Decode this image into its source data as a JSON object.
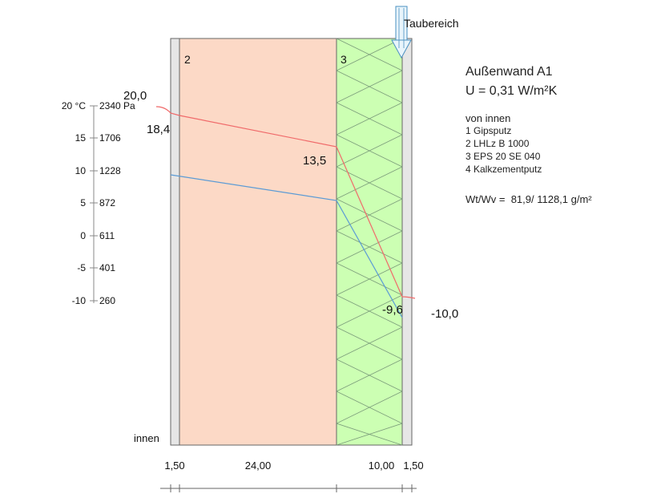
{
  "top_label": "Taubereich",
  "info": {
    "title": "Außenwand A1",
    "u_value": "U = 0,31 W/m²K",
    "from_inside": "von innen",
    "layers": [
      "1 Gipsputz",
      "2 LHLz B 1000",
      "3 EPS 20 SE 040",
      "4 Kalkzementputz"
    ],
    "wt_wv": "Wt/Wv =  81,9/ 1128,1 g/m²"
  },
  "scale": {
    "temps": [
      "20 °C",
      "15",
      "10",
      "5",
      "0",
      "-5",
      "-10"
    ],
    "pressures": [
      "2340 Pa",
      "1706",
      "1228",
      "872",
      "611",
      "401",
      "260"
    ]
  },
  "layer_numbers": [
    "2",
    "3"
  ],
  "temperature_labels": {
    "inside_air": "20,0",
    "inside_surface": "18,4",
    "interface_2_3": "13,5",
    "outside_surface": "-9,6",
    "outside_air": "-10,0"
  },
  "inside_label": "innen",
  "thicknesses": [
    "1,50",
    "24,00",
    "10,00",
    "1,50"
  ],
  "colors": {
    "plaster": "#e6e6e6",
    "brick": "#fcd9c6",
    "insulation": "#ccffb3",
    "temperature_line": "#f06a6a",
    "vapour_line": "#5b9bd5",
    "arrow": "#a9d4f0"
  }
}
